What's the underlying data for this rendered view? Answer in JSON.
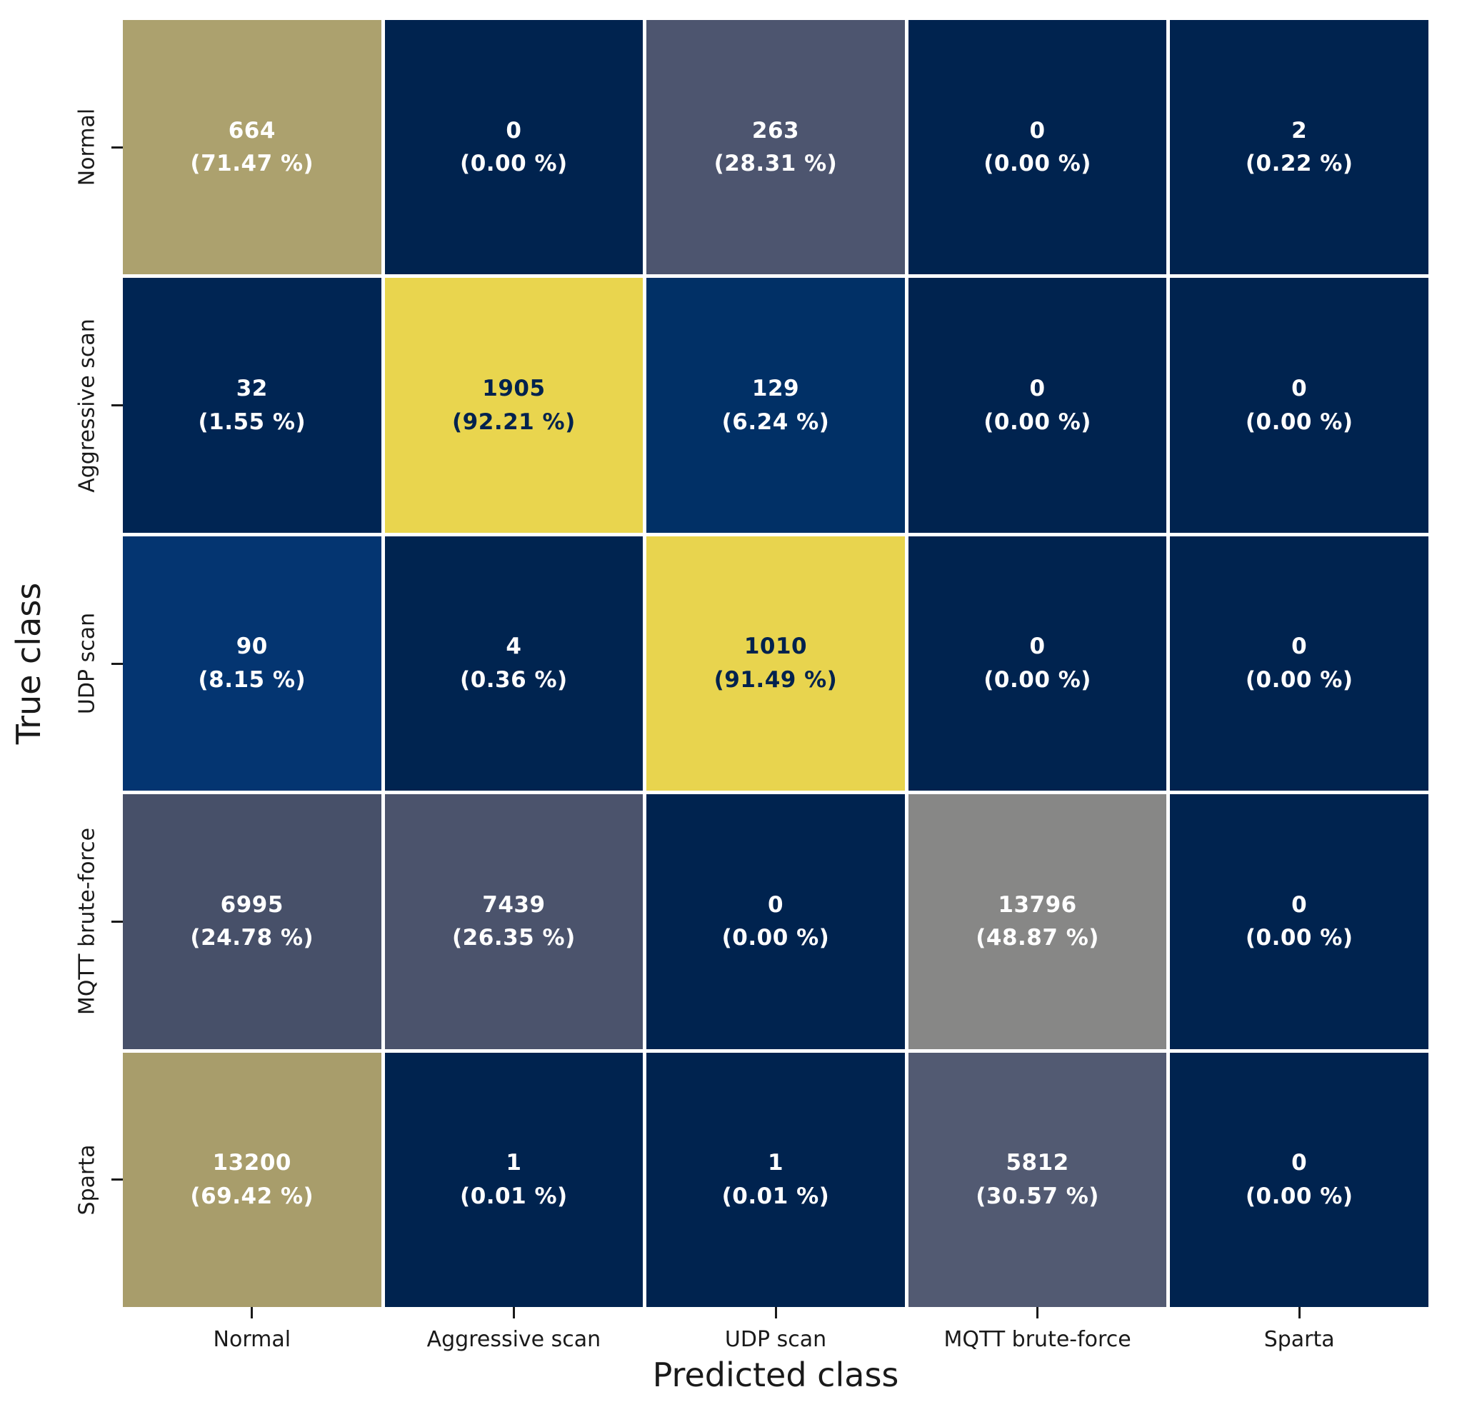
{
  "chart_data": {
    "type": "heatmap",
    "title": "",
    "xlabel": "Predicted class",
    "ylabel": "True class",
    "x_labels": [
      "Normal",
      "Aggressive scan",
      "UDP scan",
      "MQTT brute-force",
      "Sparta"
    ],
    "y_labels": [
      "Normal",
      "Aggressive scan",
      "UDP scan",
      "MQTT brute-force",
      "Sparta"
    ],
    "legend_position": "none",
    "grid": false,
    "annotation_format": "count newline (row-percent %)",
    "colormap": "cividis-like (dark navy = 0 % -> slate -> gray -> khaki -> yellow = high %)",
    "colors": {
      "background": "#ffffff",
      "cell_gap": "#ffffff",
      "text_light": "#ffffff",
      "text_dark": "#00224e",
      "axis_text": "#1a1a1a"
    },
    "rows": [
      {
        "true_class": "Normal",
        "cells": [
          {
            "count": "664",
            "percent": "(71.47 %)",
            "value": 664,
            "pct": 71.47,
            "bg": "#aca16e",
            "fg": "#ffffff"
          },
          {
            "count": "0",
            "percent": "(0.00 %)",
            "value": 0,
            "pct": 0.0,
            "bg": "#00234f",
            "fg": "#ffffff"
          },
          {
            "count": "263",
            "percent": "(28.31 %)",
            "value": 263,
            "pct": 28.31,
            "bg": "#4d556f",
            "fg": "#ffffff"
          },
          {
            "count": "0",
            "percent": "(0.00 %)",
            "value": 0,
            "pct": 0.0,
            "bg": "#00234f",
            "fg": "#ffffff"
          },
          {
            "count": "2",
            "percent": "(0.22 %)",
            "value": 2,
            "pct": 0.22,
            "bg": "#00234f",
            "fg": "#ffffff"
          }
        ]
      },
      {
        "true_class": "Aggressive scan",
        "cells": [
          {
            "count": "32",
            "percent": "(1.55 %)",
            "value": 32,
            "pct": 1.55,
            "bg": "#002553",
            "fg": "#ffffff"
          },
          {
            "count": "1905",
            "percent": "(92.21 %)",
            "value": 1905,
            "pct": 92.21,
            "bg": "#e9d54e",
            "fg": "#00224e"
          },
          {
            "count": "129",
            "percent": "(6.24 %)",
            "value": 129,
            "pct": 6.24,
            "bg": "#013066",
            "fg": "#ffffff"
          },
          {
            "count": "0",
            "percent": "(0.00 %)",
            "value": 0,
            "pct": 0.0,
            "bg": "#00234f",
            "fg": "#ffffff"
          },
          {
            "count": "0",
            "percent": "(0.00 %)",
            "value": 0,
            "pct": 0.0,
            "bg": "#00234f",
            "fg": "#ffffff"
          }
        ]
      },
      {
        "true_class": "UDP scan",
        "cells": [
          {
            "count": "90",
            "percent": "(8.15 %)",
            "value": 90,
            "pct": 8.15,
            "bg": "#043571",
            "fg": "#ffffff"
          },
          {
            "count": "4",
            "percent": "(0.36 %)",
            "value": 4,
            "pct": 0.36,
            "bg": "#002450",
            "fg": "#ffffff"
          },
          {
            "count": "1010",
            "percent": "(91.49 %)",
            "value": 1010,
            "pct": 91.49,
            "bg": "#e8d44e",
            "fg": "#00224e"
          },
          {
            "count": "0",
            "percent": "(0.00 %)",
            "value": 0,
            "pct": 0.0,
            "bg": "#00234f",
            "fg": "#ffffff"
          },
          {
            "count": "0",
            "percent": "(0.00 %)",
            "value": 0,
            "pct": 0.0,
            "bg": "#00234f",
            "fg": "#ffffff"
          }
        ]
      },
      {
        "true_class": "MQTT brute-force",
        "cells": [
          {
            "count": "6995",
            "percent": "(24.78 %)",
            "value": 6995,
            "pct": 24.78,
            "bg": "#475069",
            "fg": "#ffffff"
          },
          {
            "count": "7439",
            "percent": "(26.35 %)",
            "value": 7439,
            "pct": 26.35,
            "bg": "#4b536c",
            "fg": "#ffffff"
          },
          {
            "count": "0",
            "percent": "(0.00 %)",
            "value": 0,
            "pct": 0.0,
            "bg": "#00234f",
            "fg": "#ffffff"
          },
          {
            "count": "13796",
            "percent": "(48.87 %)",
            "value": 13796,
            "pct": 48.87,
            "bg": "#878786",
            "fg": "#ffffff"
          },
          {
            "count": "0",
            "percent": "(0.00 %)",
            "value": 0,
            "pct": 0.0,
            "bg": "#00234f",
            "fg": "#ffffff"
          }
        ]
      },
      {
        "true_class": "Sparta",
        "cells": [
          {
            "count": "13200",
            "percent": "(69.42 %)",
            "value": 13200,
            "pct": 69.42,
            "bg": "#a89d6b",
            "fg": "#ffffff"
          },
          {
            "count": "1",
            "percent": "(0.01 %)",
            "value": 1,
            "pct": 0.01,
            "bg": "#00234f",
            "fg": "#ffffff"
          },
          {
            "count": "1",
            "percent": "(0.01 %)",
            "value": 1,
            "pct": 0.01,
            "bg": "#00234f",
            "fg": "#ffffff"
          },
          {
            "count": "5812",
            "percent": "(30.57 %)",
            "value": 5812,
            "pct": 30.57,
            "bg": "#525a72",
            "fg": "#ffffff"
          },
          {
            "count": "0",
            "percent": "(0.00 %)",
            "value": 0,
            "pct": 0.0,
            "bg": "#00234f",
            "fg": "#ffffff"
          }
        ]
      }
    ]
  }
}
